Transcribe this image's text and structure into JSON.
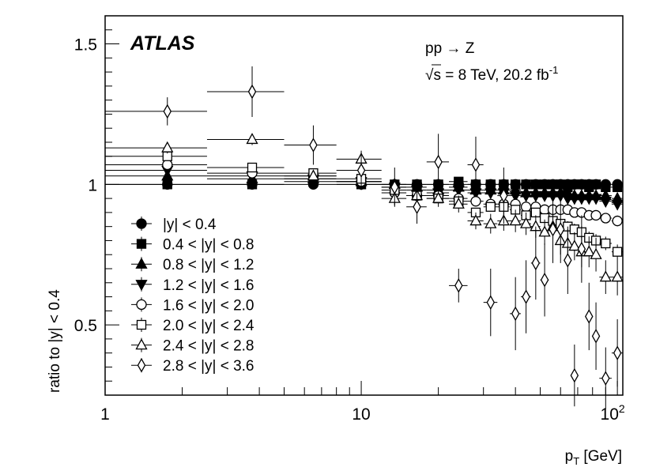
{
  "chart_data": {
    "type": "scatter",
    "title": "",
    "brand": "ATLAS",
    "process": "pp → Z",
    "energy_lumi": {
      "sqrt": "√",
      "main": "s = 8 TeV, 20.2 fb",
      "sup": "-1"
    },
    "xlabel": {
      "main": "p",
      "sub": "T",
      "unit": " [GeV]"
    },
    "ylabel": "ratio to |y| < 0.4",
    "xscale": "log",
    "xlim": [
      1,
      105
    ],
    "ylim": [
      0.25,
      1.6
    ],
    "x_ticks": [
      {
        "value": 1,
        "label": "1"
      },
      {
        "value": 10,
        "label": "10"
      },
      {
        "value": 100,
        "label": "10",
        "sup": "2"
      }
    ],
    "y_ticks": [
      {
        "value": 0.5,
        "label": "0.5"
      },
      {
        "value": 1,
        "label": "1"
      },
      {
        "value": 1.5,
        "label": "1.5"
      }
    ],
    "legend_position": "lower-left",
    "bins": [
      [
        1,
        2.5
      ],
      [
        2.5,
        5
      ],
      [
        5,
        8
      ],
      [
        8,
        12
      ],
      [
        12,
        15
      ],
      [
        15,
        18
      ],
      [
        18,
        22
      ],
      [
        22,
        26
      ],
      [
        26,
        30
      ],
      [
        30,
        34
      ],
      [
        34,
        38
      ],
      [
        38,
        42
      ],
      [
        42,
        46
      ],
      [
        46,
        50
      ],
      [
        50,
        54
      ],
      [
        54,
        58
      ],
      [
        58,
        62
      ],
      [
        62,
        66
      ],
      [
        66,
        70
      ],
      [
        70,
        75
      ],
      [
        75,
        80
      ],
      [
        80,
        85
      ],
      [
        85,
        95
      ],
      [
        95,
        105
      ]
    ],
    "x": [
      1.75,
      3.75,
      6.5,
      10,
      13.5,
      16.5,
      20,
      24,
      28,
      32,
      36,
      40,
      44,
      48,
      52,
      56,
      60,
      64,
      68,
      72.5,
      77.5,
      82.5,
      90,
      100
    ],
    "series": [
      {
        "name": "|y| < 0.4",
        "marker": "circle-filled",
        "values": [
          1,
          1,
          1,
          1,
          1,
          1,
          1,
          1,
          1,
          1,
          1,
          1,
          1,
          1,
          1,
          1,
          1,
          1,
          1,
          1,
          1,
          1,
          1,
          1
        ],
        "yerr": [
          0.003,
          0.003,
          0.003,
          0.003,
          0.003,
          0.003,
          0.003,
          0.003,
          0.003,
          0.003,
          0.003,
          0.003,
          0.003,
          0.003,
          0.003,
          0.003,
          0.003,
          0.003,
          0.003,
          0.003,
          0.003,
          0.003,
          0.003,
          0.003
        ]
      },
      {
        "name": "0.4 < |y| < 0.8",
        "marker": "square-filled",
        "values": [
          1.0,
          1.0,
          1.01,
          1.0,
          1.0,
          1.0,
          1.0,
          1.01,
          1.0,
          1.0,
          1.0,
          1.0,
          1.0,
          1.0,
          1.0,
          1.0,
          1.0,
          0.99,
          1.0,
          1.0,
          0.99,
          1.0,
          0.99,
          0.99
        ],
        "yerr": [
          0.005,
          0.005,
          0.005,
          0.005,
          0.005,
          0.005,
          0.005,
          0.006,
          0.006,
          0.006,
          0.006,
          0.007,
          0.007,
          0.007,
          0.008,
          0.008,
          0.008,
          0.009,
          0.009,
          0.009,
          0.01,
          0.01,
          0.01,
          0.012
        ]
      },
      {
        "name": "0.8 < |y| < 1.2",
        "marker": "triangle-up-filled",
        "values": [
          1.03,
          1.02,
          1.02,
          1.01,
          1.0,
          0.99,
          0.98,
          0.99,
          0.98,
          0.98,
          0.98,
          0.98,
          0.97,
          0.97,
          0.97,
          0.97,
          0.97,
          0.97,
          0.96,
          0.96,
          0.96,
          0.96,
          0.96,
          0.95
        ],
        "yerr": [
          0.006,
          0.006,
          0.006,
          0.006,
          0.007,
          0.007,
          0.007,
          0.008,
          0.008,
          0.008,
          0.009,
          0.009,
          0.009,
          0.01,
          0.01,
          0.01,
          0.01,
          0.011,
          0.011,
          0.012,
          0.012,
          0.013,
          0.013,
          0.014
        ]
      },
      {
        "name": "1.2 < |y| < 1.6",
        "marker": "triangle-down-filled",
        "values": [
          1.05,
          1.03,
          1.02,
          1.01,
          0.99,
          0.98,
          0.97,
          0.98,
          0.97,
          0.97,
          0.97,
          0.96,
          0.96,
          0.96,
          0.96,
          0.96,
          0.96,
          0.95,
          0.95,
          0.95,
          0.95,
          0.95,
          0.94,
          0.93
        ],
        "yerr": [
          0.007,
          0.007,
          0.007,
          0.007,
          0.008,
          0.008,
          0.008,
          0.009,
          0.009,
          0.01,
          0.01,
          0.01,
          0.011,
          0.011,
          0.012,
          0.012,
          0.012,
          0.013,
          0.013,
          0.014,
          0.014,
          0.015,
          0.015,
          0.016
        ]
      },
      {
        "name": "1.6 < |y| < 2.0",
        "marker": "circle-open",
        "values": [
          1.07,
          1.04,
          1.03,
          1.01,
          0.97,
          0.96,
          0.96,
          0.95,
          0.94,
          0.93,
          0.93,
          0.93,
          0.92,
          0.92,
          0.91,
          0.91,
          0.91,
          0.91,
          0.9,
          0.9,
          0.89,
          0.89,
          0.88,
          0.87
        ],
        "yerr": [
          0.008,
          0.008,
          0.008,
          0.008,
          0.009,
          0.009,
          0.009,
          0.01,
          0.01,
          0.011,
          0.011,
          0.012,
          0.012,
          0.013,
          0.013,
          0.014,
          0.014,
          0.015,
          0.015,
          0.016,
          0.016,
          0.017,
          0.018,
          0.019
        ]
      },
      {
        "name": "2.0 < |y| < 2.4",
        "marker": "square-open",
        "values": [
          1.1,
          1.06,
          1.04,
          1.02,
          0.98,
          0.96,
          0.95,
          0.94,
          0.9,
          0.92,
          0.92,
          0.91,
          0.89,
          0.9,
          0.88,
          0.87,
          0.86,
          0.85,
          0.84,
          0.83,
          0.81,
          0.8,
          0.79,
          0.76
        ],
        "yerr": [
          0.01,
          0.01,
          0.01,
          0.01,
          0.011,
          0.011,
          0.012,
          0.012,
          0.013,
          0.013,
          0.014,
          0.014,
          0.015,
          0.016,
          0.016,
          0.017,
          0.018,
          0.019,
          0.02,
          0.021,
          0.022,
          0.023,
          0.024,
          0.026
        ]
      },
      {
        "name": "2.4 < |y| < 2.8",
        "marker": "triangle-up-open",
        "values": [
          1.13,
          1.16,
          1.03,
          1.09,
          0.95,
          0.96,
          0.95,
          0.93,
          0.87,
          0.86,
          0.87,
          0.87,
          0.86,
          0.85,
          0.83,
          0.85,
          0.8,
          0.79,
          0.78,
          0.76,
          0.76,
          0.75,
          0.67,
          0.67
        ],
        "yerr": [
          0.02,
          0.02,
          0.02,
          0.025,
          0.025,
          0.025,
          0.03,
          0.03,
          0.03,
          0.035,
          0.035,
          0.04,
          0.04,
          0.04,
          0.045,
          0.045,
          0.05,
          0.05,
          0.05,
          0.055,
          0.055,
          0.06,
          0.06,
          0.065
        ]
      },
      {
        "name": "2.8 < |y| < 3.6",
        "marker": "diamond-open",
        "values": [
          1.26,
          1.33,
          1.14,
          1.05,
          0.99,
          0.92,
          1.08,
          0.64,
          1.07,
          0.58,
          0.96,
          0.54,
          0.6,
          0.72,
          0.66,
          0.84,
          0.84,
          0.73,
          0.32,
          0.77,
          0.53,
          0.46,
          0.31,
          0.4
        ],
        "yerr": [
          0.05,
          0.09,
          0.07,
          0.07,
          0.07,
          0.06,
          0.1,
          0.06,
          0.1,
          0.12,
          0.1,
          0.13,
          0.13,
          0.13,
          0.13,
          0.12,
          0.12,
          0.12,
          0.11,
          0.12,
          0.12,
          0.12,
          0.11,
          0.12
        ]
      }
    ]
  }
}
